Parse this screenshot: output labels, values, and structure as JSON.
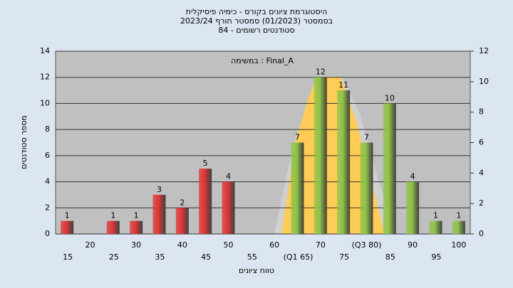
{
  "chart_data": {
    "type": "bar",
    "title": [
      "היסטוגרמת ציונים בקורס - כימיה פיסיקלית",
      "בסמסטר  (01/2023)  סמסטר חורף  2023/24",
      "סטודנטים רשומים - 84"
    ],
    "annotation": "במשימה : Final_A",
    "ylabel": "מספר סטודנטים",
    "xlabel": "טווח ציונים",
    "categories": [
      "15",
      "20",
      "25",
      "30",
      "35",
      "40",
      "45",
      "50",
      "55",
      "60",
      "(Q1 65)",
      "70",
      "75",
      "(Q3 80)",
      "85",
      "90",
      "95",
      "100"
    ],
    "values": [
      1,
      0,
      1,
      1,
      3,
      2,
      5,
      4,
      0,
      0,
      7,
      12,
      11,
      7,
      10,
      4,
      1,
      1
    ],
    "colors": [
      "#e03535",
      "#e03535",
      "#e03535",
      "#e03535",
      "#e03535",
      "#e03535",
      "#e03535",
      "#e03535",
      "#e03535",
      "#e03535",
      "#8fc24a",
      "#8fc24a",
      "#8fc24a",
      "#8fc24a",
      "#8fc24a",
      "#8fc24a",
      "#8fc24a",
      "#8fc24a"
    ],
    "ylim": [
      0,
      14
    ],
    "yticks": [
      0,
      2,
      4,
      6,
      8,
      10,
      12,
      14
    ],
    "y2lim": [
      0,
      12
    ],
    "y2ticks": [
      0,
      2,
      4,
      6,
      8,
      10,
      12
    ],
    "grid": true
  }
}
